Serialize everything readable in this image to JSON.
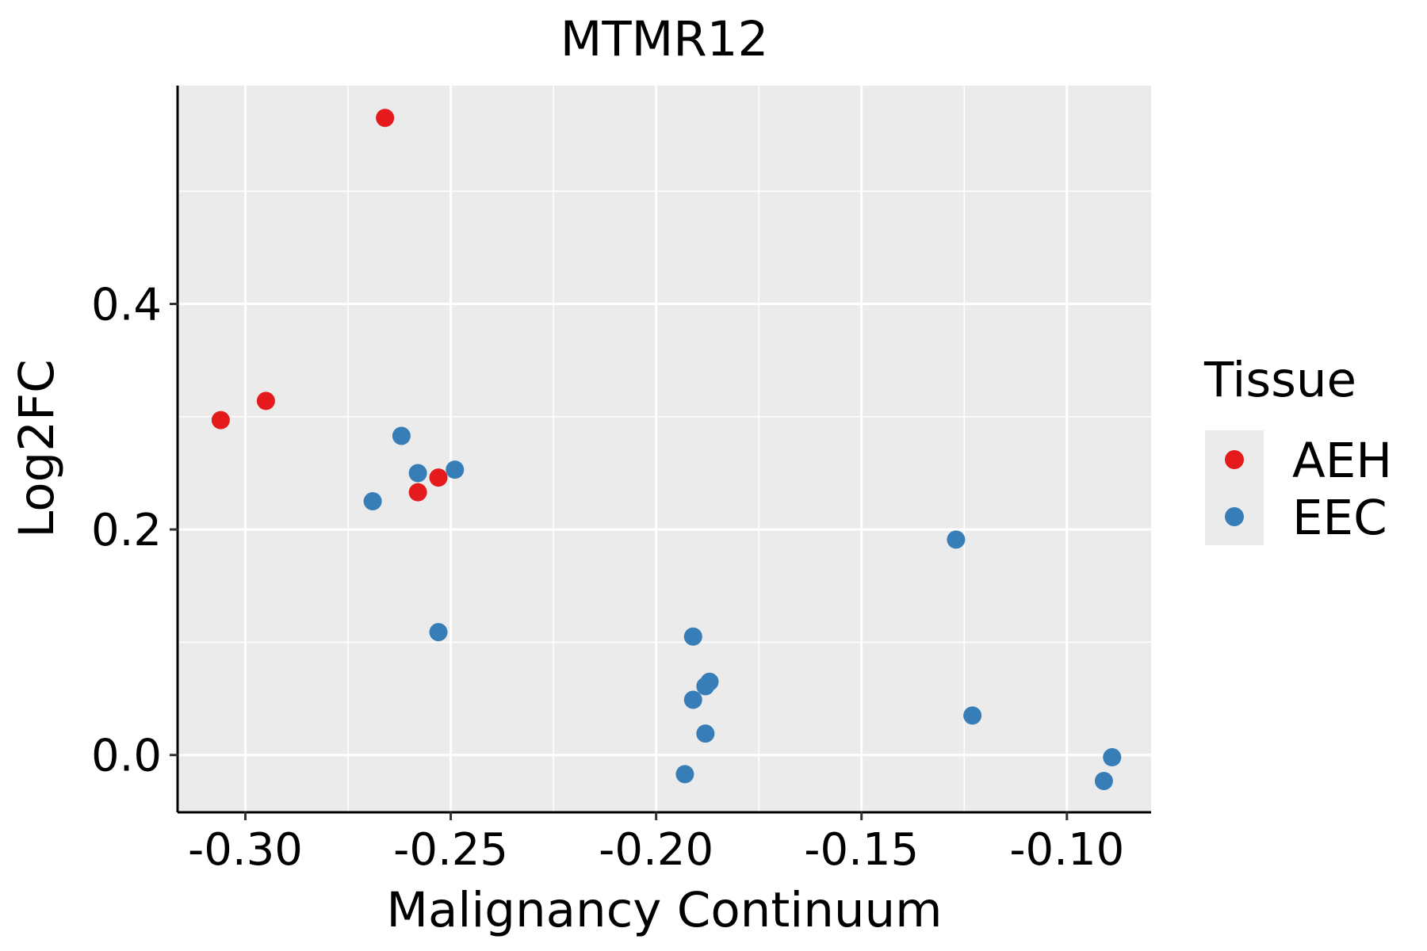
{
  "chart_data": {
    "type": "scatter",
    "title": "MTMR12",
    "xlabel": "Malignancy Continuum",
    "ylabel": "Log2FC",
    "xlim": [
      -0.3165,
      -0.0795
    ],
    "ylim": [
      -0.0508,
      0.5936
    ],
    "x_ticks": [
      -0.3,
      -0.25,
      -0.2,
      -0.15,
      -0.1
    ],
    "x_tick_labels": [
      "-0.30",
      "-0.25",
      "-0.20",
      "-0.15",
      "-0.10"
    ],
    "y_ticks": [
      0.0,
      0.2,
      0.4
    ],
    "y_tick_labels": [
      "0.0",
      "0.2",
      "0.4"
    ],
    "grid": true,
    "legend": {
      "title": "Tissue",
      "position": "right",
      "entries": [
        {
          "label": "AEH",
          "color": "#E41A1C"
        },
        {
          "label": "EEC",
          "color": "#377EB8"
        }
      ]
    },
    "series": [
      {
        "name": "AEH",
        "color": "#E41A1C",
        "points": [
          {
            "x": -0.266,
            "y": 0.565
          },
          {
            "x": -0.306,
            "y": 0.297
          },
          {
            "x": -0.295,
            "y": 0.314
          },
          {
            "x": -0.258,
            "y": 0.233
          },
          {
            "x": -0.253,
            "y": 0.246
          }
        ]
      },
      {
        "name": "EEC",
        "color": "#377EB8",
        "points": [
          {
            "x": -0.262,
            "y": 0.283
          },
          {
            "x": -0.258,
            "y": 0.25
          },
          {
            "x": -0.249,
            "y": 0.253
          },
          {
            "x": -0.269,
            "y": 0.225
          },
          {
            "x": -0.253,
            "y": 0.109
          },
          {
            "x": -0.191,
            "y": 0.105
          },
          {
            "x": -0.187,
            "y": 0.065
          },
          {
            "x": -0.188,
            "y": 0.061
          },
          {
            "x": -0.191,
            "y": 0.049
          },
          {
            "x": -0.188,
            "y": 0.019
          },
          {
            "x": -0.193,
            "y": -0.017
          },
          {
            "x": -0.127,
            "y": 0.191
          },
          {
            "x": -0.123,
            "y": 0.035
          },
          {
            "x": -0.089,
            "y": -0.002
          },
          {
            "x": -0.091,
            "y": -0.023
          }
        ]
      }
    ]
  }
}
